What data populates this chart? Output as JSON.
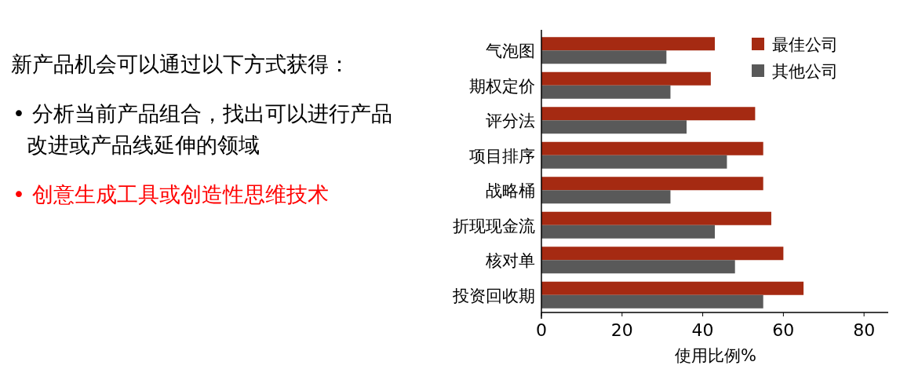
{
  "chart_data": {
    "type": "bar",
    "orientation": "horizontal",
    "categories": [
      "气泡图",
      "期权定价",
      "评分法",
      "项目排序",
      "战略桶",
      "折现现金流",
      "核对单",
      "投资回收期"
    ],
    "series": [
      {
        "name": "最佳公司",
        "color": "#a52a12",
        "values": [
          43,
          42,
          53,
          55,
          55,
          57,
          60,
          65
        ]
      },
      {
        "name": "其他公司",
        "color": "#595959",
        "values": [
          31,
          32,
          36,
          46,
          32,
          43,
          48,
          55
        ]
      }
    ],
    "xlim": [
      0,
      86
    ],
    "xticks": [
      0,
      20,
      40,
      60,
      80
    ],
    "xlabel": "使用比例%",
    "legend": "top right",
    "grid": false,
    "annotations": [
      "新产品机会可以通过以下方式获得：",
      "• 分析当前产品组合，找出可以进行产品改进或产品线延伸的领域",
      "• 创意生成工具或创造性思维技术"
    ]
  }
}
